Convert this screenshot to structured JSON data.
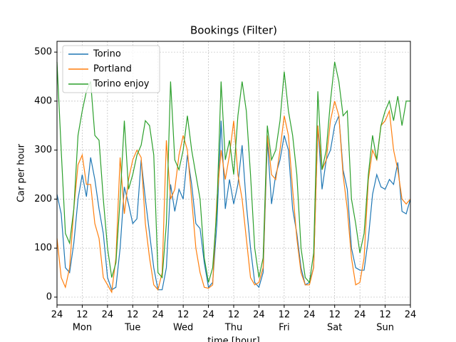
{
  "chart_data": {
    "type": "line",
    "title": "Bookings (Filter)",
    "x_label": "time [hour]",
    "y_label": "Car per hour",
    "x": [
      0,
      2,
      4,
      6,
      8,
      10,
      12,
      14,
      16,
      18,
      20,
      22,
      24,
      26,
      28,
      30,
      32,
      34,
      36,
      38,
      40,
      42,
      44,
      46,
      48,
      50,
      52,
      54,
      56,
      58,
      60,
      62,
      64,
      66,
      68,
      70,
      72,
      74,
      76,
      78,
      80,
      82,
      84,
      86,
      88,
      90,
      92,
      94,
      96,
      98,
      100,
      102,
      104,
      106,
      108,
      110,
      112,
      114,
      116,
      118,
      120,
      122,
      124,
      126,
      128,
      130,
      132,
      134,
      136,
      138,
      140,
      142,
      144,
      146,
      148,
      150,
      152,
      154,
      156,
      158,
      160,
      162,
      164,
      166,
      168
    ],
    "series": [
      {
        "name": "Torino",
        "color": "#1f77b4",
        "values": [
          210,
          170,
          60,
          50,
          110,
          200,
          250,
          205,
          285,
          240,
          180,
          130,
          40,
          15,
          20,
          100,
          225,
          190,
          150,
          160,
          280,
          200,
          130,
          60,
          15,
          15,
          60,
          230,
          175,
          220,
          200,
          290,
          230,
          150,
          140,
          70,
          20,
          30,
          150,
          360,
          180,
          240,
          190,
          230,
          310,
          190,
          100,
          30,
          20,
          50,
          320,
          190,
          250,
          280,
          330,
          300,
          180,
          130,
          60,
          25,
          30,
          60,
          350,
          220,
          280,
          300,
          350,
          370,
          260,
          220,
          100,
          60,
          55,
          55,
          120,
          210,
          250,
          225,
          220,
          240,
          230,
          275,
          175,
          170,
          200
        ]
      },
      {
        "name": "Portland",
        "color": "#ff7f0e",
        "values": [
          120,
          40,
          20,
          60,
          180,
          270,
          290,
          230,
          230,
          150,
          120,
          40,
          25,
          10,
          80,
          285,
          170,
          240,
          280,
          300,
          285,
          150,
          80,
          25,
          15,
          50,
          320,
          200,
          220,
          290,
          330,
          300,
          200,
          100,
          50,
          20,
          18,
          25,
          200,
          300,
          240,
          290,
          360,
          250,
          200,
          120,
          40,
          25,
          30,
          60,
          330,
          250,
          240,
          300,
          370,
          330,
          220,
          120,
          50,
          25,
          25,
          60,
          350,
          260,
          280,
          360,
          400,
          370,
          250,
          180,
          80,
          25,
          30,
          80,
          240,
          300,
          280,
          350,
          360,
          380,
          300,
          260,
          200,
          190,
          200
        ]
      },
      {
        "name": "Torino enjoy",
        "color": "#2ca02c",
        "values": [
          480,
          300,
          130,
          110,
          180,
          330,
          380,
          420,
          440,
          330,
          320,
          200,
          100,
          40,
          70,
          200,
          360,
          220,
          250,
          290,
          310,
          360,
          350,
          290,
          50,
          40,
          150,
          440,
          280,
          260,
          300,
          370,
          300,
          250,
          200,
          80,
          30,
          60,
          180,
          440,
          280,
          320,
          250,
          370,
          440,
          380,
          250,
          100,
          40,
          80,
          350,
          280,
          300,
          360,
          460,
          380,
          330,
          250,
          100,
          40,
          30,
          90,
          420,
          260,
          300,
          400,
          480,
          440,
          370,
          380,
          200,
          150,
          90,
          130,
          250,
          330,
          280,
          350,
          380,
          400,
          360,
          410,
          350,
          400,
          400
        ]
      }
    ],
    "xlim": [
      0,
      168
    ],
    "ylim": [
      -16,
      522
    ],
    "xticks": [
      {
        "value": 0,
        "label": "24"
      },
      12,
      {
        "value": 24,
        "label": "24"
      },
      {
        "value": 36,
        "label": "12"
      },
      {
        "value": 48,
        "label": "24"
      },
      {
        "value": 60,
        "label": "12"
      },
      {
        "value": 72,
        "label": "24"
      },
      {
        "value": 84,
        "label": "12"
      },
      {
        "value": 96,
        "label": "24"
      },
      {
        "value": 108,
        "label": "12"
      },
      {
        "value": 120,
        "label": "24"
      },
      {
        "value": 132,
        "label": "12"
      },
      {
        "value": 144,
        "label": "24"
      },
      {
        "value": 156,
        "label": "12"
      },
      {
        "value": 168,
        "label": "24"
      }
    ],
    "day_labels": [
      {
        "value": 12,
        "label": "Mon"
      },
      {
        "value": 36,
        "label": "Tue"
      },
      {
        "value": 60,
        "label": "Wed"
      },
      {
        "value": 84,
        "label": "Thu"
      },
      {
        "value": 108,
        "label": "Fri"
      },
      {
        "value": 132,
        "label": "Sat"
      },
      {
        "value": 156,
        "label": "Sun"
      }
    ],
    "yticks": [
      0,
      100,
      200,
      300,
      400,
      500
    ],
    "grid": true,
    "legend": "upper-left"
  }
}
